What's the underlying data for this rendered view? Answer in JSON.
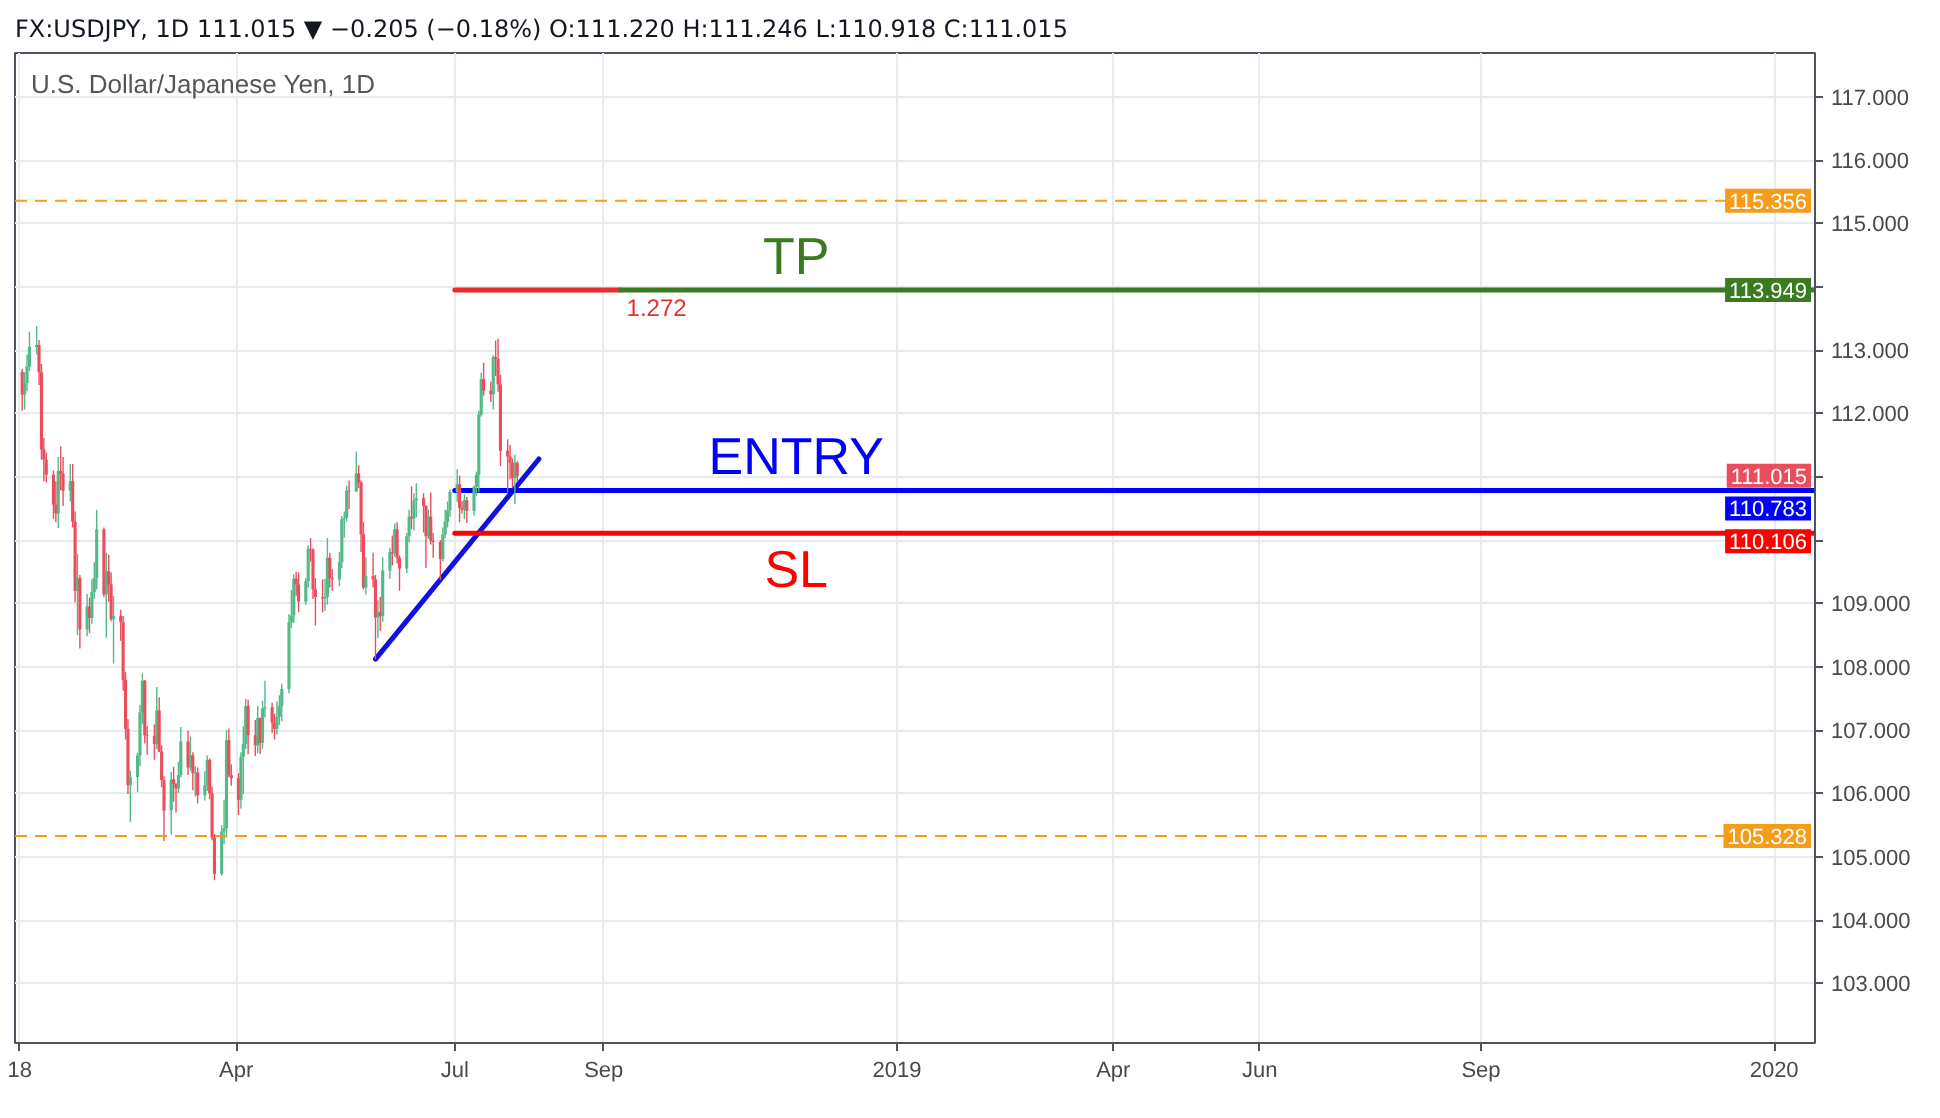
{
  "chart_data": {
    "type": "candlestick",
    "title": "U.S. Dollar/Japanese Yen, 1D",
    "subtitle": "FX:USDJPY, 1D 111.015 ▼ −0.205 (−0.18%) O:111.220 H:111.246 L:110.918 C:111.015",
    "x": [
      "2018-01-02",
      "2018-01-03",
      "2018-01-04",
      "2018-01-05",
      "2018-01-08",
      "2018-01-09",
      "2018-01-10",
      "2018-01-11",
      "2018-01-12",
      "2018-01-15",
      "2018-01-16",
      "2018-01-17",
      "2018-01-18",
      "2018-01-19",
      "2018-01-22",
      "2018-01-23",
      "2018-01-24",
      "2018-01-25",
      "2018-01-26",
      "2018-01-29",
      "2018-01-30",
      "2018-01-31",
      "2018-02-01",
      "2018-02-02",
      "2018-02-05",
      "2018-02-06",
      "2018-02-07",
      "2018-02-08",
      "2018-02-09",
      "2018-02-12",
      "2018-02-13",
      "2018-02-14",
      "2018-02-15",
      "2018-02-16",
      "2018-02-19",
      "2018-02-20",
      "2018-02-21",
      "2018-02-22",
      "2018-02-23",
      "2018-02-26",
      "2018-02-27",
      "2018-02-28",
      "2018-03-01",
      "2018-03-02",
      "2018-03-05",
      "2018-03-06",
      "2018-03-07",
      "2018-03-08",
      "2018-03-09",
      "2018-03-12",
      "2018-03-13",
      "2018-03-14",
      "2018-03-15",
      "2018-03-16",
      "2018-03-19",
      "2018-03-20",
      "2018-03-21",
      "2018-03-22",
      "2018-03-23",
      "2018-03-26",
      "2018-03-27",
      "2018-03-28",
      "2018-03-29",
      "2018-03-30",
      "2018-04-02",
      "2018-04-03",
      "2018-04-04",
      "2018-04-05",
      "2018-04-06",
      "2018-04-09",
      "2018-04-10",
      "2018-04-11",
      "2018-04-12",
      "2018-04-13",
      "2018-04-16",
      "2018-04-17",
      "2018-04-18",
      "2018-04-19",
      "2018-04-20",
      "2018-04-23",
      "2018-04-24",
      "2018-04-25",
      "2018-04-26",
      "2018-04-27",
      "2018-04-30",
      "2018-05-01",
      "2018-05-02",
      "2018-05-03",
      "2018-05-04",
      "2018-05-07",
      "2018-05-08",
      "2018-05-09",
      "2018-05-10",
      "2018-05-11",
      "2018-05-14",
      "2018-05-15",
      "2018-05-16",
      "2018-05-17",
      "2018-05-18",
      "2018-05-21",
      "2018-05-22",
      "2018-05-23",
      "2018-05-24",
      "2018-05-25",
      "2018-05-28",
      "2018-05-29",
      "2018-05-30",
      "2018-05-31",
      "2018-06-01",
      "2018-06-04",
      "2018-06-05",
      "2018-06-06",
      "2018-06-07",
      "2018-06-08",
      "2018-06-11",
      "2018-06-12",
      "2018-06-13",
      "2018-06-14",
      "2018-06-15",
      "2018-06-18",
      "2018-06-19",
      "2018-06-20",
      "2018-06-21",
      "2018-06-22",
      "2018-06-25",
      "2018-06-26",
      "2018-06-27",
      "2018-06-28",
      "2018-06-29",
      "2018-07-02",
      "2018-07-03",
      "2018-07-04",
      "2018-07-05",
      "2018-07-06",
      "2018-07-09",
      "2018-07-10",
      "2018-07-11",
      "2018-07-12",
      "2018-07-13",
      "2018-07-16",
      "2018-07-17",
      "2018-07-18",
      "2018-07-19",
      "2018-07-20",
      "2018-07-23",
      "2018-07-24",
      "2018-07-25",
      "2018-07-26",
      "2018-07-27"
    ],
    "ohlc": [
      [
        112.66,
        112.7,
        112.04,
        112.3
      ],
      [
        112.3,
        112.65,
        112.06,
        112.48
      ],
      [
        112.48,
        112.93,
        112.35,
        112.74
      ],
      [
        112.74,
        113.29,
        112.67,
        113.05
      ],
      [
        113.05,
        113.38,
        112.93,
        113.08
      ],
      [
        113.08,
        113.16,
        112.45,
        112.65
      ],
      [
        112.65,
        112.78,
        111.27,
        111.43
      ],
      [
        111.43,
        111.61,
        110.93,
        111.27
      ],
      [
        111.27,
        111.38,
        110.91,
        111.03
      ],
      [
        111.03,
        111.1,
        110.33,
        110.56
      ],
      [
        110.56,
        110.93,
        110.28,
        110.42
      ],
      [
        110.42,
        111.31,
        110.19,
        111.09
      ],
      [
        111.09,
        111.48,
        110.79,
        111.05
      ],
      [
        111.05,
        111.31,
        110.54,
        110.78
      ],
      [
        110.78,
        111.2,
        110.61,
        110.93
      ],
      [
        110.93,
        111.2,
        110.2,
        110.29
      ],
      [
        110.29,
        110.45,
        109.02,
        109.2
      ],
      [
        109.2,
        109.78,
        108.5,
        109.4
      ],
      [
        109.4,
        109.45,
        108.29,
        108.59
      ],
      [
        108.59,
        109.15,
        108.48,
        108.95
      ],
      [
        108.95,
        109.09,
        108.53,
        108.77
      ],
      [
        108.77,
        109.38,
        108.68,
        109.18
      ],
      [
        109.18,
        109.65,
        109.07,
        109.4
      ],
      [
        109.4,
        110.48,
        109.22,
        110.17
      ],
      [
        110.17,
        110.2,
        109.1,
        109.14
      ],
      [
        109.14,
        109.8,
        108.46,
        109.51
      ],
      [
        109.51,
        109.77,
        109.03,
        109.3
      ],
      [
        109.3,
        109.49,
        108.72,
        108.75
      ],
      [
        108.75,
        109.12,
        108.05,
        108.8
      ],
      [
        108.8,
        108.9,
        108.41,
        108.7
      ],
      [
        108.7,
        108.8,
        107.62,
        107.79
      ],
      [
        107.79,
        107.92,
        106.85,
        107.02
      ],
      [
        107.02,
        107.17,
        105.99,
        106.13
      ],
      [
        106.13,
        106.36,
        105.55,
        106.26
      ],
      [
        106.26,
        106.64,
        106.02,
        106.6
      ],
      [
        106.6,
        107.4,
        106.43,
        107.28
      ],
      [
        107.28,
        107.9,
        107.1,
        107.78
      ],
      [
        107.78,
        107.79,
        106.79,
        106.92
      ],
      [
        106.92,
        107.06,
        106.61,
        106.91
      ],
      [
        106.91,
        107.09,
        106.53,
        106.78
      ],
      [
        106.78,
        107.68,
        106.7,
        107.31
      ],
      [
        107.31,
        107.52,
        106.65,
        106.66
      ],
      [
        106.66,
        106.76,
        106.1,
        106.21
      ],
      [
        106.21,
        106.27,
        105.25,
        105.73
      ],
      [
        105.73,
        106.34,
        105.35,
        106.22
      ],
      [
        106.22,
        106.42,
        105.87,
        106.15
      ],
      [
        106.15,
        106.16,
        105.7,
        106.08
      ],
      [
        106.08,
        106.5,
        106.01,
        106.29
      ],
      [
        106.29,
        107.05,
        106.26,
        106.82
      ],
      [
        106.82,
        106.99,
        106.29,
        106.41
      ],
      [
        106.41,
        106.9,
        106.36,
        106.6
      ],
      [
        106.6,
        106.65,
        106.05,
        106.32
      ],
      [
        106.32,
        106.43,
        105.95,
        106.33
      ],
      [
        106.33,
        106.41,
        105.84,
        105.97
      ],
      [
        105.97,
        106.35,
        105.89,
        106.13
      ],
      [
        106.13,
        106.6,
        106.04,
        106.53
      ],
      [
        106.53,
        106.55,
        105.91,
        106.0
      ],
      [
        106.0,
        106.11,
        105.26,
        105.3
      ],
      [
        105.3,
        105.36,
        104.63,
        104.73
      ],
      [
        104.73,
        105.5,
        104.7,
        105.4
      ],
      [
        105.4,
        105.9,
        105.2,
        105.45
      ],
      [
        105.45,
        107.0,
        105.3,
        106.84
      ],
      [
        106.84,
        107.02,
        106.26,
        106.29
      ],
      [
        106.29,
        106.46,
        106.12,
        106.24
      ],
      [
        106.24,
        106.32,
        105.66,
        105.9
      ],
      [
        105.9,
        106.65,
        105.76,
        106.58
      ],
      [
        106.58,
        107.06,
        105.99,
        106.78
      ],
      [
        106.78,
        107.49,
        106.7,
        107.38
      ],
      [
        107.38,
        107.48,
        106.62,
        106.92
      ],
      [
        106.92,
        107.16,
        106.59,
        106.76
      ],
      [
        106.76,
        107.38,
        106.64,
        107.19
      ],
      [
        107.19,
        107.2,
        106.62,
        106.8
      ],
      [
        106.8,
        107.46,
        106.71,
        107.34
      ],
      [
        107.34,
        107.78,
        107.2,
        107.36
      ],
      [
        107.36,
        107.43,
        106.96,
        107.12
      ],
      [
        107.12,
        107.26,
        106.85,
        107.02
      ],
      [
        107.02,
        107.45,
        106.93,
        107.21
      ],
      [
        107.21,
        107.55,
        107.08,
        107.38
      ],
      [
        107.38,
        107.73,
        107.14,
        107.65
      ],
      [
        107.65,
        108.83,
        107.58,
        108.7
      ],
      [
        108.7,
        109.21,
        108.61,
        108.81
      ],
      [
        108.81,
        109.46,
        108.69,
        109.39
      ],
      [
        109.39,
        109.5,
        109.12,
        109.3
      ],
      [
        109.3,
        109.49,
        108.86,
        109.03
      ],
      [
        109.03,
        109.4,
        108.98,
        109.35
      ],
      [
        109.35,
        109.92,
        109.25,
        109.86
      ],
      [
        109.86,
        110.03,
        109.66,
        109.85
      ],
      [
        109.85,
        109.87,
        109.07,
        109.22
      ],
      [
        109.22,
        109.4,
        108.65,
        109.1
      ],
      [
        109.1,
        109.38,
        108.86,
        109.08
      ],
      [
        109.08,
        109.39,
        108.88,
        109.1
      ],
      [
        109.1,
        110.03,
        108.98,
        109.72
      ],
      [
        109.72,
        109.8,
        109.25,
        109.4
      ],
      [
        109.4,
        109.54,
        109.2,
        109.38
      ],
      [
        109.38,
        109.81,
        109.27,
        109.65
      ],
      [
        109.65,
        110.38,
        109.56,
        110.33
      ],
      [
        110.33,
        110.45,
        110.04,
        110.35
      ],
      [
        110.35,
        110.86,
        110.29,
        110.78
      ],
      [
        110.78,
        110.94,
        110.49,
        110.77
      ],
      [
        110.77,
        111.4,
        110.76,
        111.05
      ],
      [
        111.05,
        111.18,
        110.82,
        110.91
      ],
      [
        110.91,
        110.94,
        109.81,
        110.09
      ],
      [
        110.09,
        110.29,
        109.22,
        109.25
      ],
      [
        109.25,
        109.73,
        109.14,
        109.43
      ],
      [
        109.43,
        109.8,
        109.25,
        109.38
      ],
      [
        109.38,
        109.45,
        108.12,
        108.78
      ],
      [
        108.78,
        109.05,
        108.45,
        108.86
      ],
      [
        108.86,
        109.1,
        108.57,
        108.8
      ],
      [
        108.8,
        109.73,
        108.71,
        109.52
      ],
      [
        109.52,
        109.88,
        109.39,
        109.81
      ],
      [
        109.81,
        110.07,
        109.6,
        109.79
      ],
      [
        109.79,
        110.26,
        109.74,
        110.17
      ],
      [
        110.17,
        110.28,
        109.63,
        109.72
      ],
      [
        109.72,
        109.76,
        109.2,
        109.55
      ],
      [
        109.55,
        110.11,
        109.48,
        110.06
      ],
      [
        110.06,
        110.48,
        109.96,
        110.37
      ],
      [
        110.37,
        110.85,
        110.17,
        110.34
      ],
      [
        110.34,
        110.74,
        110.15,
        110.62
      ],
      [
        110.62,
        110.9,
        110.36,
        110.66
      ],
      [
        110.66,
        110.74,
        110.12,
        110.54
      ],
      [
        110.54,
        110.55,
        109.56,
        110.06
      ],
      [
        110.06,
        110.48,
        110.02,
        110.37
      ],
      [
        110.37,
        110.75,
        109.93,
        109.99
      ],
      [
        109.99,
        110.11,
        109.72,
        109.97
      ],
      [
        109.97,
        110.0,
        109.37,
        109.7
      ],
      [
        109.7,
        110.2,
        109.66,
        110.09
      ],
      [
        110.09,
        110.48,
        110.03,
        110.29
      ],
      [
        110.29,
        110.61,
        110.2,
        110.47
      ],
      [
        110.47,
        110.8,
        110.37,
        110.76
      ],
      [
        110.76,
        111.12,
        110.6,
        110.88
      ],
      [
        110.88,
        111.02,
        110.28,
        110.51
      ],
      [
        110.51,
        110.61,
        110.42,
        110.48
      ],
      [
        110.48,
        110.72,
        110.33,
        110.63
      ],
      [
        110.63,
        110.68,
        110.27,
        110.46
      ],
      [
        110.46,
        110.86,
        110.39,
        110.84
      ],
      [
        110.84,
        111.08,
        110.7,
        111.03
      ],
      [
        111.03,
        112.04,
        110.75,
        111.98
      ],
      [
        111.98,
        112.64,
        111.95,
        112.54
      ],
      [
        112.54,
        112.8,
        112.28,
        112.36
      ],
      [
        112.36,
        112.5,
        112.18,
        112.3
      ],
      [
        112.3,
        112.92,
        112.06,
        112.89
      ],
      [
        112.89,
        113.15,
        112.59,
        112.86
      ],
      [
        112.86,
        113.18,
        112.34,
        112.46
      ],
      [
        112.46,
        112.61,
        111.17,
        111.41
      ],
      [
        111.41,
        111.59,
        110.75,
        111.32
      ],
      [
        111.32,
        111.5,
        110.96,
        111.22
      ],
      [
        111.22,
        111.29,
        110.82,
        110.98
      ],
      [
        110.98,
        111.35,
        110.57,
        111.22
      ],
      [
        111.22,
        111.246,
        110.918,
        111.015
      ]
    ],
    "colors": [
      "#eb4d5c",
      "#53b987",
      "#53b987",
      "#53b987",
      "#53b987",
      "#eb4d5c",
      "#eb4d5c",
      "#eb4d5c",
      "#eb4d5c",
      "#eb4d5c",
      "#eb4d5c",
      "#53b987",
      "#eb4d5c",
      "#eb4d5c",
      "#53b987",
      "#eb4d5c",
      "#eb4d5c",
      "#53b987",
      "#eb4d5c",
      "#53b987",
      "#eb4d5c",
      "#53b987",
      "#53b987",
      "#53b987",
      "#eb4d5c",
      "#53b987",
      "#eb4d5c",
      "#eb4d5c",
      "#53b987",
      "#eb4d5c",
      "#eb4d5c",
      "#eb4d5c",
      "#eb4d5c",
      "#53b987",
      "#53b987",
      "#53b987",
      "#53b987",
      "#eb4d5c",
      "#eb4d5c",
      "#eb4d5c",
      "#53b987",
      "#eb4d5c",
      "#eb4d5c",
      "#eb4d5c",
      "#53b987",
      "#eb4d5c",
      "#eb4d5c",
      "#53b987",
      "#53b987",
      "#eb4d5c",
      "#53b987",
      "#eb4d5c",
      "#53b987",
      "#eb4d5c",
      "#53b987",
      "#53b987",
      "#eb4d5c",
      "#eb4d5c",
      "#eb4d5c",
      "#53b987",
      "#53b987",
      "#53b987",
      "#eb4d5c",
      "#eb4d5c",
      "#eb4d5c",
      "#53b987",
      "#53b987",
      "#53b987",
      "#eb4d5c",
      "#eb4d5c",
      "#53b987",
      "#eb4d5c",
      "#53b987",
      "#53b987",
      "#eb4d5c",
      "#eb4d5c",
      "#53b987",
      "#53b987",
      "#53b987",
      "#53b987",
      "#53b987",
      "#53b987",
      "#eb4d5c",
      "#eb4d5c",
      "#53b987",
      "#53b987",
      "#eb4d5c",
      "#eb4d5c",
      "#eb4d5c",
      "#eb4d5c",
      "#53b987",
      "#53b987",
      "#eb4d5c",
      "#eb4d5c",
      "#53b987",
      "#53b987",
      "#53b987",
      "#53b987",
      "#eb4d5c",
      "#53b987",
      "#eb4d5c",
      "#eb4d5c",
      "#eb4d5c",
      "#53b987",
      "#eb4d5c",
      "#eb4d5c",
      "#53b987",
      "#eb4d5c",
      "#53b987",
      "#53b987",
      "#eb4d5c",
      "#53b987",
      "#eb4d5c",
      "#eb4d5c",
      "#53b987",
      "#53b987",
      "#eb4d5c",
      "#53b987",
      "#53b987",
      "#eb4d5c",
      "#eb4d5c",
      "#53b987",
      "#eb4d5c",
      "#eb4d5c",
      "#eb4d5c",
      "#53b987",
      "#53b987",
      "#53b987",
      "#53b987",
      "#53b987",
      "#eb4d5c",
      "#eb4d5c",
      "#53b987",
      "#eb4d5c",
      "#53b987",
      "#53b987",
      "#53b987",
      "#53b987",
      "#eb4d5c",
      "#eb4d5c",
      "#53b987",
      "#eb4d5c",
      "#eb4d5c",
      "#eb4d5c",
      "#eb4d5c",
      "#eb4d5c",
      "#eb4d5c",
      "#53b987",
      "#eb4d5c"
    ],
    "value_labels": [
      null,
      null,
      null,
      null,
      null,
      null,
      null,
      null,
      null,
      null,
      null,
      null,
      null,
      null,
      null,
      null,
      null,
      null,
      null,
      null,
      null,
      null,
      null,
      null,
      null,
      null,
      null,
      null,
      null,
      null,
      null,
      null,
      null,
      null,
      null,
      null,
      null,
      null,
      null,
      null,
      null,
      null,
      null,
      null,
      null,
      null,
      null,
      null,
      null,
      null,
      null,
      null,
      null,
      null,
      null,
      null,
      null,
      null,
      null,
      null,
      null,
      null,
      null,
      null,
      null,
      null,
      null,
      null,
      null,
      null,
      null,
      null,
      null,
      null,
      null,
      null,
      null,
      null,
      null,
      null,
      null,
      null,
      null,
      null,
      null,
      null,
      null,
      null,
      null,
      null,
      null,
      null,
      null,
      null,
      null,
      null,
      null,
      null,
      null,
      null,
      null,
      null,
      null,
      null,
      null,
      null,
      null,
      null,
      null,
      null,
      null,
      null,
      null,
      null,
      null,
      null,
      null,
      null,
      null,
      null,
      null,
      null,
      null,
      null,
      null,
      null,
      null,
      null,
      null,
      null,
      null,
      null,
      null,
      null,
      null,
      null,
      null,
      null,
      null,
      null,
      null,
      null,
      null,
      null,
      null,
      null,
      null,
      null,
      "111.015"
    ],
    "series": [
      {
        "type": "line",
        "x": [
          "2018-05-29",
          "2018-08-05"
        ],
        "values": [
          108.12,
          111.28
        ],
        "color": "#1010e0"
      },
      {
        "type": "line",
        "x": [
          "2018-07-01",
          "2018-09-08"
        ],
        "values": [
          113.949,
          113.949
        ],
        "color": "#ee2b2b"
      },
      {
        "type": "line",
        "name": "TP",
        "x": [
          "2018-09-08",
          "2020-01-18"
        ],
        "values": [
          113.949,
          113.949
        ],
        "color": "#3a7a20",
        "value_labels": [
          null,
          "113.949"
        ]
      },
      {
        "type": "line",
        "name": "ENTRY",
        "x": [
          "2018-07-01",
          "2020-01-18"
        ],
        "values": [
          110.783,
          110.783
        ],
        "color": "#0000ff",
        "value_labels": [
          null,
          "110.783"
        ]
      },
      {
        "type": "line",
        "name": "SL",
        "x": [
          "2018-07-01",
          "2020-01-18"
        ],
        "values": [
          110.106,
          110.106
        ],
        "color": "#ff0000",
        "value_labels": [
          null,
          "110.106"
        ]
      }
    ],
    "ref_lines": [
      {
        "axis": "y",
        "value": 115.356,
        "label": "115.356",
        "color": "#f59c1a",
        "line_style": "dashed"
      },
      {
        "axis": "y",
        "value": 105.328,
        "label": "105.328",
        "color": "#f59c1a",
        "line_style": "dashed"
      }
    ],
    "annotations": [
      {
        "text": "1.272",
        "x": "2018-09-08",
        "y": 113.949
      }
    ],
    "xlim": [
      "2017-12-30",
      "2020-01-18"
    ],
    "xticks": [
      {
        "value": "2018-01-01",
        "label": "18"
      },
      {
        "value": "2018-04-01",
        "label": "Apr"
      },
      {
        "value": "2018-07-01",
        "label": "Jul"
      },
      {
        "value": "2018-09-01",
        "label": "Sep"
      },
      {
        "value": "2019-01-01",
        "label": "2019"
      },
      {
        "value": "2019-04-01",
        "label": "Apr"
      },
      {
        "value": "2019-06-01",
        "label": "Jun"
      },
      {
        "value": "2019-09-01",
        "label": "Sep"
      },
      {
        "value": "2020-01-01",
        "label": "2020"
      }
    ],
    "ylim": [
      102.06,
      117.69
    ],
    "yticks": [
      {
        "value": 103,
        "label": "103.000"
      },
      {
        "value": 104,
        "label": "104.000"
      },
      {
        "value": 105,
        "label": "105.000"
      },
      {
        "value": 106,
        "label": "106.000"
      },
      {
        "value": 107,
        "label": "107.000"
      },
      {
        "value": 108,
        "label": "108.000"
      },
      {
        "value": 109,
        "label": "109.000"
      },
      {
        "value": 110,
        "label": null
      },
      {
        "value": 111,
        "label": null
      },
      {
        "value": 112,
        "label": "112.000"
      },
      {
        "value": 113,
        "label": "113.000"
      },
      {
        "value": 114,
        "label": null
      },
      {
        "value": 115,
        "label": "115.000"
      },
      {
        "value": 116,
        "label": "116.000"
      },
      {
        "value": 117,
        "label": "117.000"
      }
    ],
    "grid": true
  }
}
